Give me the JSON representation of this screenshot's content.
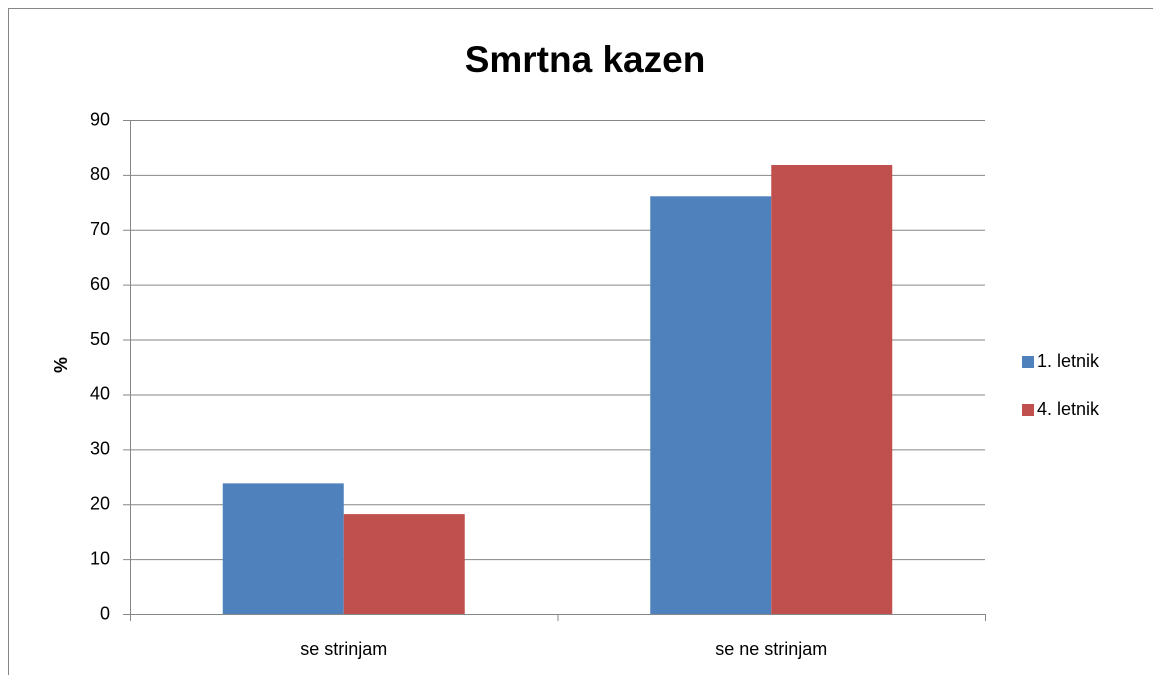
{
  "chart_data": {
    "type": "bar",
    "title": "Smrtna kazen",
    "y_label": "%",
    "categories": [
      "se strinjam",
      "se ne strinjam"
    ],
    "series": [
      {
        "name": "1. letnik",
        "color": "#4f81bd",
        "values": [
          23.8,
          76.1
        ]
      },
      {
        "name": "4. letnik",
        "color": "#c0504d",
        "values": [
          18.2,
          81.8
        ]
      }
    ],
    "ylim": [
      0,
      90
    ],
    "yticks": [
      0,
      10,
      20,
      30,
      40,
      50,
      60,
      70,
      80,
      90
    ],
    "grid": true,
    "legend": "right"
  }
}
